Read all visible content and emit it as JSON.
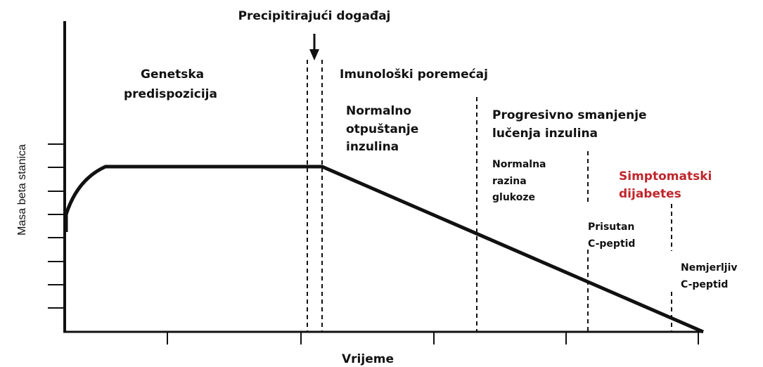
{
  "event": "Precipitirajući događaj",
  "phases": {
    "genetic": [
      "Genetska",
      "predispozicija"
    ],
    "immune": "Imunološki poremećaj",
    "normal_release": [
      "Normalno",
      "otpuštanje",
      "inzulina"
    ],
    "progressive": [
      "Progresivno smanjenje",
      "lučenja inzulina"
    ],
    "normal_glucose": [
      "Normalna",
      "razina",
      "glukoze"
    ],
    "symptomatic": [
      "Simptomatski",
      "dijabetes"
    ],
    "present_cpeptide": [
      "Prisutan",
      "C-peptid"
    ],
    "unmeasurable_cpeptide": [
      "Nemjerljiv",
      "C-peptid"
    ]
  },
  "x_axis_label": "Vrijeme",
  "y_axis_label": "Masa beta stanica"
}
